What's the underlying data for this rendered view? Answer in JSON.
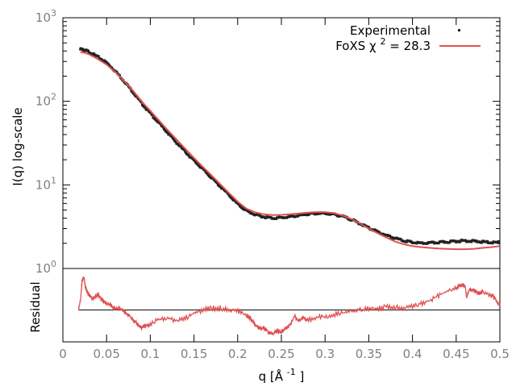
{
  "chart_data": {
    "type": "line",
    "main_panel": {
      "ylabel": "I(q) log-scale",
      "yscale": "log",
      "ylim": [
        1,
        1000
      ],
      "y_ticks": [
        {
          "value": 1,
          "base": "10",
          "exp": "0"
        },
        {
          "value": 10,
          "base": "10",
          "exp": "1"
        },
        {
          "value": 100,
          "base": "10",
          "exp": "2"
        },
        {
          "value": 1000,
          "base": "10",
          "exp": "3"
        }
      ],
      "series": [
        {
          "name": "Experimental",
          "style": "points",
          "color": "#222222",
          "x": [
            0.02,
            0.025,
            0.03,
            0.04,
            0.05,
            0.06,
            0.07,
            0.08,
            0.09,
            0.1,
            0.11,
            0.12,
            0.13,
            0.14,
            0.15,
            0.16,
            0.17,
            0.18,
            0.19,
            0.2,
            0.21,
            0.22,
            0.23,
            0.24,
            0.25,
            0.26,
            0.27,
            0.28,
            0.29,
            0.3,
            0.31,
            0.32,
            0.33,
            0.34,
            0.35,
            0.36,
            0.37,
            0.38,
            0.39,
            0.4,
            0.41,
            0.42,
            0.43,
            0.44,
            0.45,
            0.46,
            0.47,
            0.48,
            0.49,
            0.5
          ],
          "y": [
            420,
            410,
            390,
            340,
            290,
            230,
            175,
            130,
            95,
            72,
            55,
            42,
            32,
            25,
            19.5,
            15.5,
            12.2,
            9.6,
            7.6,
            5.9,
            4.9,
            4.4,
            4.15,
            4.0,
            4.05,
            4.15,
            4.3,
            4.45,
            4.55,
            4.55,
            4.45,
            4.2,
            3.85,
            3.45,
            3.05,
            2.75,
            2.5,
            2.3,
            2.15,
            2.05,
            2.0,
            2.02,
            2.05,
            2.08,
            2.12,
            2.15,
            2.12,
            2.08,
            2.05,
            2.05
          ]
        },
        {
          "name": "FoXS χ",
          "name_sup": "2",
          "name_suffix": " = 28.3",
          "style": "line",
          "color": "#e05050",
          "x": [
            0.02,
            0.025,
            0.03,
            0.04,
            0.05,
            0.06,
            0.07,
            0.08,
            0.09,
            0.1,
            0.11,
            0.12,
            0.13,
            0.14,
            0.15,
            0.16,
            0.17,
            0.18,
            0.19,
            0.2,
            0.21,
            0.22,
            0.23,
            0.24,
            0.25,
            0.26,
            0.27,
            0.28,
            0.29,
            0.3,
            0.31,
            0.32,
            0.33,
            0.34,
            0.35,
            0.36,
            0.37,
            0.38,
            0.39,
            0.4,
            0.41,
            0.42,
            0.43,
            0.44,
            0.45,
            0.46,
            0.47,
            0.48,
            0.49,
            0.5
          ],
          "y": [
            390,
            380,
            365,
            320,
            275,
            225,
            175,
            135,
            100,
            77,
            59,
            45,
            35,
            27,
            21,
            16.5,
            13,
            10.2,
            8.0,
            6.3,
            5.2,
            4.7,
            4.45,
            4.35,
            4.38,
            4.45,
            4.55,
            4.65,
            4.72,
            4.72,
            4.6,
            4.3,
            3.9,
            3.45,
            3.0,
            2.65,
            2.35,
            2.1,
            1.95,
            1.85,
            1.8,
            1.76,
            1.73,
            1.71,
            1.7,
            1.7,
            1.72,
            1.76,
            1.8,
            1.85
          ]
        }
      ]
    },
    "residual_panel": {
      "ylabel": "Residual",
      "zero_line": true,
      "series": [
        {
          "color": "#e05050",
          "x": [
            0.018,
            0.02,
            0.022,
            0.024,
            0.026,
            0.028,
            0.03,
            0.035,
            0.04,
            0.045,
            0.05,
            0.055,
            0.06,
            0.065,
            0.07,
            0.075,
            0.08,
            0.085,
            0.09,
            0.095,
            0.1,
            0.11,
            0.12,
            0.13,
            0.14,
            0.15,
            0.16,
            0.17,
            0.18,
            0.19,
            0.2,
            0.21,
            0.215,
            0.22,
            0.225,
            0.23,
            0.235,
            0.24,
            0.245,
            0.25,
            0.255,
            0.26,
            0.265,
            0.27,
            0.275,
            0.28,
            0.29,
            0.3,
            0.31,
            0.32,
            0.33,
            0.34,
            0.35,
            0.36,
            0.37,
            0.38,
            0.39,
            0.4,
            0.41,
            0.42,
            0.43,
            0.44,
            0.45,
            0.455,
            0.46,
            0.462,
            0.465,
            0.47,
            0.475,
            0.48,
            0.49,
            0.495,
            0.5
          ],
          "y": [
            0.0,
            0.3,
            0.9,
            1.05,
            0.7,
            0.55,
            0.45,
            0.35,
            0.5,
            0.3,
            0.2,
            0.15,
            0.05,
            0.05,
            -0.05,
            -0.15,
            -0.3,
            -0.45,
            -0.55,
            -0.5,
            -0.45,
            -0.3,
            -0.25,
            -0.35,
            -0.25,
            -0.1,
            0.0,
            0.05,
            0.05,
            0.0,
            -0.05,
            -0.15,
            -0.3,
            -0.45,
            -0.6,
            -0.55,
            -0.7,
            -0.75,
            -0.65,
            -0.7,
            -0.6,
            -0.45,
            -0.2,
            -0.35,
            -0.25,
            -0.3,
            -0.25,
            -0.2,
            -0.15,
            -0.1,
            -0.05,
            0.0,
            0.05,
            0.05,
            0.1,
            0.1,
            0.05,
            0.1,
            0.2,
            0.3,
            0.45,
            0.6,
            0.7,
            0.75,
            0.8,
            0.4,
            0.65,
            0.6,
            0.55,
            0.55,
            0.45,
            0.35,
            0.15
          ]
        }
      ]
    },
    "x_axis": {
      "xlabel": "q [Å",
      "xlabel_sup": "-1",
      "xlabel_suffix": "]",
      "xlim": [
        0,
        0.5
      ],
      "ticks": [
        {
          "value": 0,
          "label": "0"
        },
        {
          "value": 0.05,
          "label": "0.05"
        },
        {
          "value": 0.1,
          "label": "0.1"
        },
        {
          "value": 0.15,
          "label": "0.15"
        },
        {
          "value": 0.2,
          "label": "0.2"
        },
        {
          "value": 0.25,
          "label": "0.25"
        },
        {
          "value": 0.3,
          "label": "0.3"
        },
        {
          "value": 0.35,
          "label": "0.35"
        },
        {
          "value": 0.4,
          "label": "0.4"
        },
        {
          "value": 0.45,
          "label": "0.45"
        },
        {
          "value": 0.5,
          "label": "0.5"
        }
      ]
    },
    "legend_position": "top-right",
    "grid": false
  }
}
